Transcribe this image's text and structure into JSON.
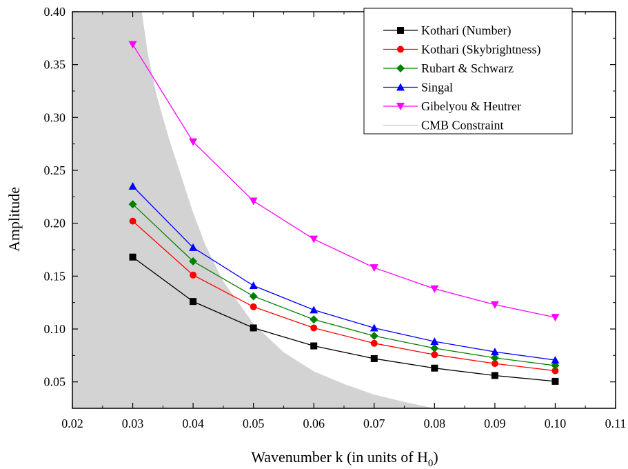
{
  "chart_data": {
    "type": "line",
    "title": "",
    "xlabel": "Wavenumber k (in units of H",
    "xlabel_subscript": "0",
    "xlabel_suffix": ")",
    "ylabel": "Amplitude",
    "xlim": [
      0.02,
      0.11
    ],
    "ylim": [
      0.025,
      0.4
    ],
    "x_ticks": [
      0.02,
      0.03,
      0.04,
      0.05,
      0.06,
      0.07,
      0.08,
      0.09,
      0.1,
      0.11
    ],
    "x_tick_labels": [
      "0.02",
      "0.03",
      "0.04",
      "0.05",
      "0.06",
      "0.07",
      "0.08",
      "0.09",
      "0.10",
      "0.11"
    ],
    "y_ticks": [
      0.05,
      0.1,
      0.15,
      0.2,
      0.25,
      0.3,
      0.35,
      0.4
    ],
    "y_tick_labels": [
      "0.05",
      "0.10",
      "0.15",
      "0.20",
      "0.25",
      "0.30",
      "0.35",
      "0.40"
    ],
    "grid": false,
    "legend_position": "top-right",
    "x": [
      0.03,
      0.04,
      0.05,
      0.06,
      0.07,
      0.08,
      0.09,
      0.1
    ],
    "series": [
      {
        "name": "Kothari (Number)",
        "color": "#000000",
        "marker": "square",
        "values": [
          0.168,
          0.126,
          0.101,
          0.084,
          0.072,
          0.063,
          0.056,
          0.0505
        ]
      },
      {
        "name": "Kothari (Skybrightness)",
        "color": "#ff0000",
        "marker": "circle",
        "values": [
          0.202,
          0.151,
          0.121,
          0.101,
          0.0865,
          0.0757,
          0.0673,
          0.0605
        ]
      },
      {
        "name": "Rubart & Schwarz",
        "color": "#008000",
        "marker": "diamond",
        "values": [
          0.218,
          0.164,
          0.131,
          0.109,
          0.0935,
          0.0818,
          0.0727,
          0.0654
        ]
      },
      {
        "name": "Singal",
        "color": "#0000ff",
        "marker": "triangle-up",
        "values": [
          0.235,
          0.177,
          0.141,
          0.118,
          0.101,
          0.0882,
          0.0784,
          0.0706
        ]
      },
      {
        "name": "Gibelyou & Heutrer",
        "color": "#ff00ff",
        "marker": "triangle-down",
        "values": [
          0.369,
          0.277,
          0.221,
          0.185,
          0.158,
          0.138,
          0.123,
          0.111
        ]
      }
    ],
    "shaded_region": {
      "name": "CMB Constraint",
      "color": "#d3d3d3",
      "boundary_x": [
        0.0315,
        0.0325,
        0.034,
        0.036,
        0.038,
        0.04,
        0.042,
        0.045,
        0.05,
        0.055,
        0.06,
        0.065,
        0.07,
        0.075,
        0.08
      ],
      "boundary_y": [
        0.4,
        0.36,
        0.32,
        0.28,
        0.245,
        0.21,
        0.18,
        0.145,
        0.105,
        0.078,
        0.06,
        0.048,
        0.038,
        0.031,
        0.025
      ]
    }
  }
}
